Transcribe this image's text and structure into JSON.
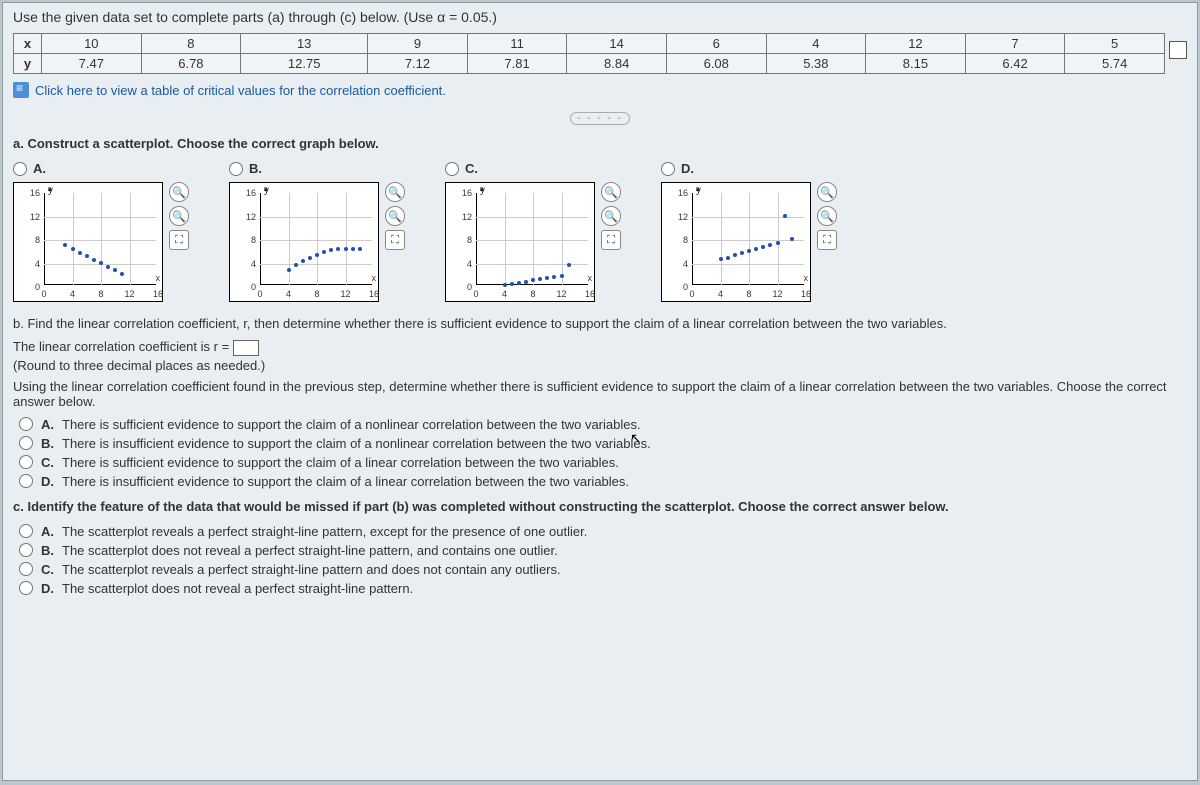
{
  "instruction": "Use the given data set to complete parts (a) through (c) below. (Use α = 0.05.)",
  "table": {
    "rowHeaders": [
      "x",
      "y"
    ],
    "x": [
      "10",
      "8",
      "13",
      "9",
      "11",
      "14",
      "6",
      "4",
      "12",
      "7",
      "5"
    ],
    "y": [
      "7.47",
      "6.78",
      "12.75",
      "7.12",
      "7.81",
      "8.84",
      "6.08",
      "5.38",
      "8.15",
      "6.42",
      "5.74"
    ]
  },
  "linkText": "Click here to view a table of critical values for the correlation coefficient.",
  "partA": "a. Construct a scatterplot. Choose the correct graph below.",
  "options": [
    "A.",
    "B.",
    "C.",
    "D."
  ],
  "chartAxis": {
    "yTicks": [
      "16",
      "12",
      "8",
      "4",
      "0"
    ],
    "xTicks": [
      "0",
      "4",
      "8",
      "12",
      "16"
    ],
    "yLabel": "y",
    "xLabel": "x"
  },
  "plots": {
    "A": [
      [
        3,
        7.8
      ],
      [
        4,
        7.1
      ],
      [
        5,
        6.5
      ],
      [
        6,
        5.9
      ],
      [
        7,
        5.3
      ],
      [
        8,
        4.7
      ],
      [
        9,
        4.1
      ],
      [
        10,
        3.5
      ],
      [
        11,
        2.9
      ]
    ],
    "B": [
      [
        4,
        3.5
      ],
      [
        5,
        4.4
      ],
      [
        6,
        5.1
      ],
      [
        7,
        5.7
      ],
      [
        8,
        6.2
      ],
      [
        9,
        6.6
      ],
      [
        10,
        6.9
      ],
      [
        11,
        7.1
      ],
      [
        12,
        7.2
      ],
      [
        13,
        7.2
      ],
      [
        14,
        7.1
      ]
    ],
    "C": [
      [
        4,
        1.0
      ],
      [
        5,
        1.2
      ],
      [
        6,
        1.4
      ],
      [
        7,
        1.6
      ],
      [
        8,
        1.8
      ],
      [
        9,
        2.0
      ],
      [
        10,
        2.2
      ],
      [
        11,
        2.4
      ],
      [
        12,
        2.6
      ],
      [
        13,
        4.5
      ]
    ],
    "D": [
      [
        4,
        5.4
      ],
      [
        5,
        5.7
      ],
      [
        6,
        6.1
      ],
      [
        7,
        6.4
      ],
      [
        8,
        6.8
      ],
      [
        9,
        7.1
      ],
      [
        10,
        7.5
      ],
      [
        11,
        7.8
      ],
      [
        12,
        8.2
      ],
      [
        13,
        12.8
      ],
      [
        14,
        8.8
      ]
    ]
  },
  "partB": {
    "intro": "b. Find the linear correlation coefficient, r, then determine whether there is sufficient evidence to support the claim of a linear correlation between the two variables.",
    "line1a": "The linear correlation coefficient is r = ",
    "line2": "(Round to three decimal places as needed.)",
    "line3": "Using the linear correlation coefficient found in the previous step, determine whether there is sufficient evidence to support the claim of a linear correlation between the two variables. Choose the correct answer below.",
    "answers": [
      {
        "l": "A.",
        "t": "There is sufficient evidence to support the claim of a nonlinear correlation between the two variables."
      },
      {
        "l": "B.",
        "t": "There is insufficient evidence to support the claim of a nonlinear correlation between the two variables."
      },
      {
        "l": "C.",
        "t": "There is sufficient evidence to support the claim of a linear correlation between the two variables."
      },
      {
        "l": "D.",
        "t": "There is insufficient evidence to support the claim of a linear correlation between the two variables."
      }
    ]
  },
  "partC": {
    "intro": "c. Identify the feature of the data that would be missed if part (b) was completed without constructing the scatterplot. Choose the correct answer below.",
    "answers": [
      {
        "l": "A.",
        "t": "The scatterplot reveals a perfect straight-line pattern, except for the presence of one outlier."
      },
      {
        "l": "B.",
        "t": "The scatterplot does not reveal a perfect straight-line pattern, and contains one outlier."
      },
      {
        "l": "C.",
        "t": "The scatterplot reveals a perfect straight-line pattern and does not contain any outliers."
      },
      {
        "l": "D.",
        "t": "The scatterplot does not reveal a perfect straight-line pattern."
      }
    ]
  }
}
